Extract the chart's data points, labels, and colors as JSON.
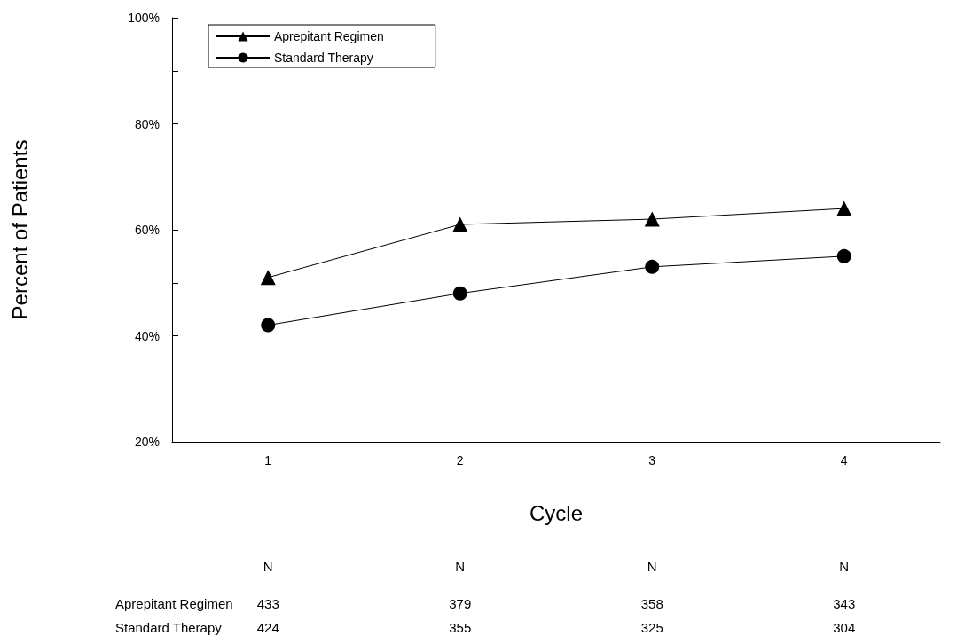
{
  "chart_data": {
    "type": "line",
    "xlabel": "Cycle",
    "ylabel": "Percent of Patients",
    "categories": [
      "1",
      "2",
      "3",
      "4"
    ],
    "series": [
      {
        "name": "Aprepitant Regimen",
        "color": "#000000",
        "marker": "triangle",
        "values": [
          51,
          61,
          62,
          64
        ]
      },
      {
        "name": "Standard Therapy",
        "color": "#000000",
        "marker": "circle",
        "values": [
          42,
          48,
          53,
          55
        ]
      }
    ],
    "ylim": [
      20,
      100
    ],
    "yticks": [
      {
        "value": 20,
        "label": "20%"
      },
      {
        "value": 30,
        "label": null
      },
      {
        "value": 40,
        "label": "40%"
      },
      {
        "value": 50,
        "label": null
      },
      {
        "value": 60,
        "label": "60%"
      },
      {
        "value": 70,
        "label": null
      },
      {
        "value": 80,
        "label": "80%"
      },
      {
        "value": 90,
        "label": null
      },
      {
        "value": 100,
        "label": "100%"
      }
    ],
    "legend": "top left",
    "grid": false,
    "annotations": [
      "N",
      "N",
      "N",
      "N",
      "Aprepitant Regimen",
      "433",
      "379",
      "358",
      "343",
      "Standard Therapy",
      "424",
      "355",
      "325",
      "304"
    ]
  }
}
